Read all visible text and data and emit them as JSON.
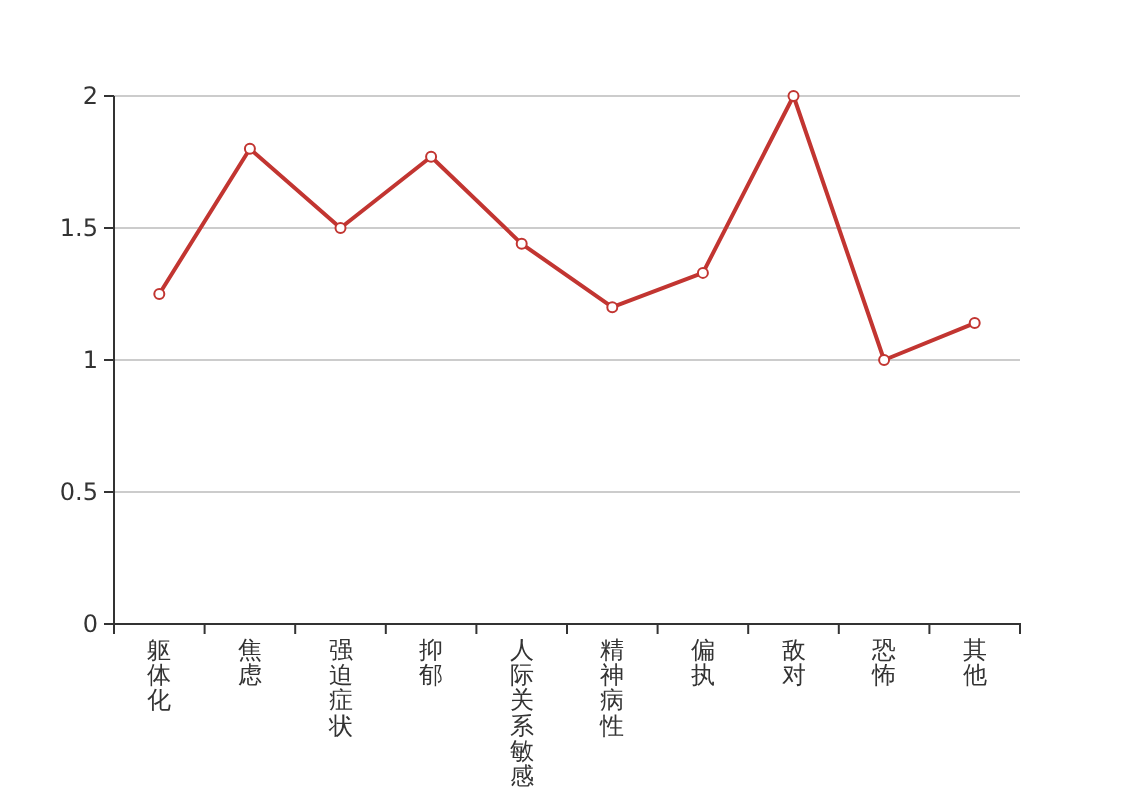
{
  "chart_data": {
    "type": "line",
    "categories": [
      "躯体化",
      "焦虑",
      "强迫症状",
      "抑郁",
      "人际关系敏感",
      "精神病性",
      "偏执",
      "敌对",
      "恐怖",
      "其他"
    ],
    "series": [
      {
        "color": "#c23531",
        "values": [
          1.25,
          1.8,
          1.5,
          1.77,
          1.44,
          1.2,
          1.33,
          2.0,
          1.0,
          1.14
        ]
      }
    ],
    "ylim": [
      0,
      2
    ],
    "yticks": [
      0,
      0.5,
      1,
      1.5,
      2
    ],
    "grid": "y",
    "marker": "circle",
    "line_style": "solid"
  }
}
